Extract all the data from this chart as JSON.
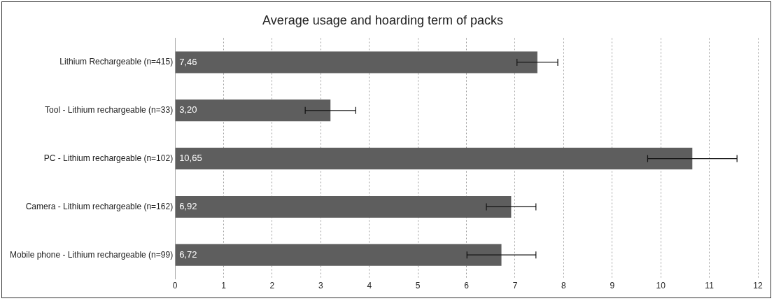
{
  "chart_data": {
    "type": "bar",
    "orientation": "horizontal",
    "title": "Average usage and hoarding term of packs",
    "categories": [
      "Lithium Rechargeable (n=415)",
      "Tool - Lithium rechargeable (n=33)",
      "PC - Lithium rechargeable (n=102)",
      "Camera - Lithium rechargeable (n=162)",
      "Mobile phone - Lithium rechargeable (n=99)"
    ],
    "values": [
      7.46,
      3.2,
      10.65,
      6.92,
      6.72
    ],
    "value_labels": [
      "7,46",
      "3,20",
      "10,65",
      "6,92",
      "6,72"
    ],
    "errors": [
      0.42,
      0.52,
      0.92,
      0.51,
      0.71
    ],
    "color": "#5e5e5e",
    "xlim": [
      0,
      12
    ],
    "xticks": [
      0,
      1,
      2,
      3,
      4,
      5,
      6,
      7,
      8,
      9,
      10,
      11,
      12
    ],
    "grid": "x"
  }
}
